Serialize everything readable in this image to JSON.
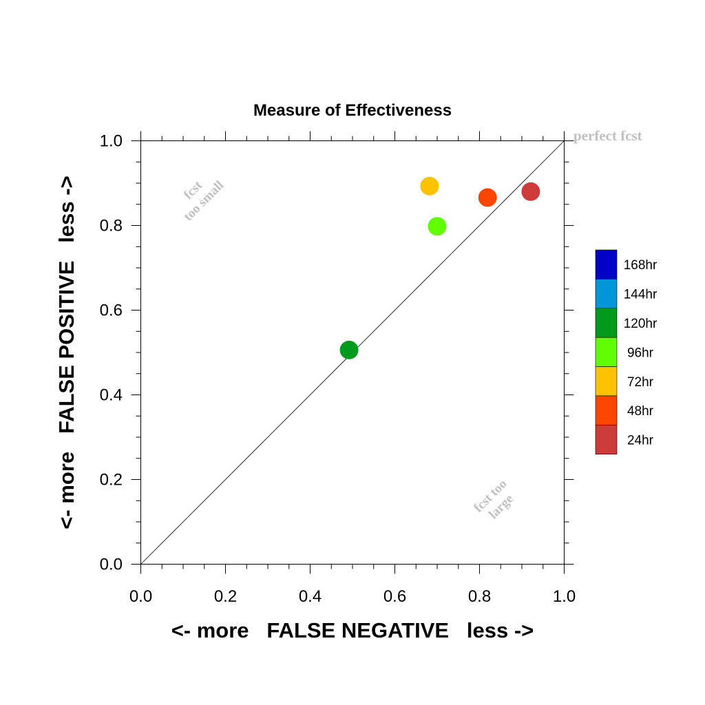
{
  "chart_data": {
    "type": "scatter",
    "title": "Measure of Effectiveness",
    "xlabel": "<- more   FALSE NEGATIVE   less ->",
    "ylabel": "<- more   FALSE POSITIVE   less ->",
    "xlim": [
      0.0,
      1.0
    ],
    "ylim": [
      0.0,
      1.0
    ],
    "xticks": [
      "0.0",
      "0.2",
      "0.4",
      "0.6",
      "0.8",
      "1.0"
    ],
    "yticks": [
      "0.0",
      "0.2",
      "0.4",
      "0.6",
      "0.8",
      "1.0"
    ],
    "grid": false,
    "diagonal_line": true,
    "annotations": {
      "perfect": "perfect fcst",
      "too_small_line1": "fcst",
      "too_small_line2": "too small",
      "too_large_line1": "fcst too",
      "too_large_line2": "large"
    },
    "legend": {
      "position": "right",
      "entries": [
        {
          "label": "168hr",
          "color": "#0000c8"
        },
        {
          "label": "144hr",
          "color": "#0096d8"
        },
        {
          "label": "120hr",
          "color": "#009a1c"
        },
        {
          "label": "96hr",
          "color": "#5fff00"
        },
        {
          "label": "72hr",
          "color": "#ffc200"
        },
        {
          "label": "48hr",
          "color": "#ff4600"
        },
        {
          "label": "24hr",
          "color": "#cd3b3b"
        }
      ]
    },
    "points": [
      {
        "lead": "120hr",
        "x": 0.492,
        "y": 0.506,
        "color": "#009a1c"
      },
      {
        "lead": "96hr",
        "x": 0.7,
        "y": 0.798,
        "color": "#5fff00"
      },
      {
        "lead": "72hr",
        "x": 0.682,
        "y": 0.893,
        "color": "#ffc200"
      },
      {
        "lead": "48hr",
        "x": 0.819,
        "y": 0.866,
        "color": "#ff4600"
      },
      {
        "lead": "24hr",
        "x": 0.921,
        "y": 0.88,
        "color": "#cd3b3b"
      }
    ]
  }
}
